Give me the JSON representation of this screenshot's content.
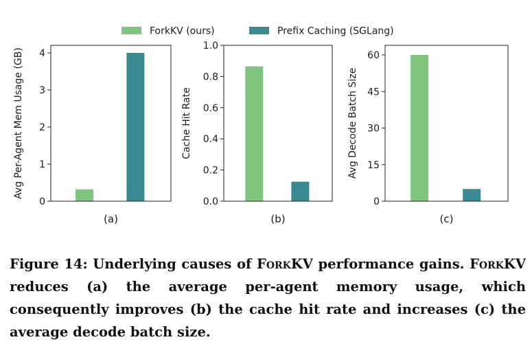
{
  "legend": {
    "items": [
      {
        "label": "ForkKV (ours)",
        "color": "#7fc47f"
      },
      {
        "label": "Prefix Caching (SGLang)",
        "color": "#3a8a93"
      }
    ]
  },
  "chart_data": [
    {
      "type": "bar",
      "categories": [
        "ForkKV (ours)",
        "Prefix Caching (SGLang)"
      ],
      "values": [
        0.32,
        4.0
      ],
      "colors": [
        "#7fc47f",
        "#3a8a93"
      ],
      "ylabel": "Avg Per-Agent Mem Usage (GB)",
      "xlabel": "(a)",
      "ylim": [
        0,
        4.32
      ],
      "yticks": [
        0,
        1,
        2,
        3,
        4
      ],
      "ytick_labels": [
        "0",
        "1",
        "2",
        "3",
        "4"
      ],
      "grid": false
    },
    {
      "type": "bar",
      "categories": [
        "ForkKV (ours)",
        "Prefix Caching (SGLang)"
      ],
      "values": [
        0.865,
        0.125
      ],
      "colors": [
        "#7fc47f",
        "#3a8a93"
      ],
      "ylabel": "Cache Hit Rate",
      "xlabel": "(b)",
      "ylim": [
        0,
        1.0
      ],
      "yticks": [
        0,
        0.2,
        0.4,
        0.6,
        0.8,
        1.0
      ],
      "ytick_labels": [
        "0.0",
        "0.2",
        "0.4",
        "0.6",
        "0.8",
        "1.0"
      ],
      "grid": false
    },
    {
      "type": "bar",
      "categories": [
        "ForkKV (ours)",
        "Prefix Caching (SGLang)"
      ],
      "values": [
        60,
        5
      ],
      "colors": [
        "#7fc47f",
        "#3a8a93"
      ],
      "ylabel": "Avg Decode Batch Size",
      "xlabel": "(c)",
      "ylim": [
        0,
        63
      ],
      "yticks": [
        0,
        15,
        30,
        45,
        60
      ],
      "ytick_labels": [
        "0",
        "15",
        "30",
        "45",
        "60"
      ],
      "grid": false
    }
  ],
  "caption": {
    "prefix": "Figure 14: Underlying causes of ",
    "name1": "ForkKV",
    "middle": " performance gains. ",
    "name2": "ForkKV",
    "rest": " reduces (a) the average per-agent memory usage, which consequently improves (b) the cache hit rate and increases (c) the average decode batch size."
  }
}
